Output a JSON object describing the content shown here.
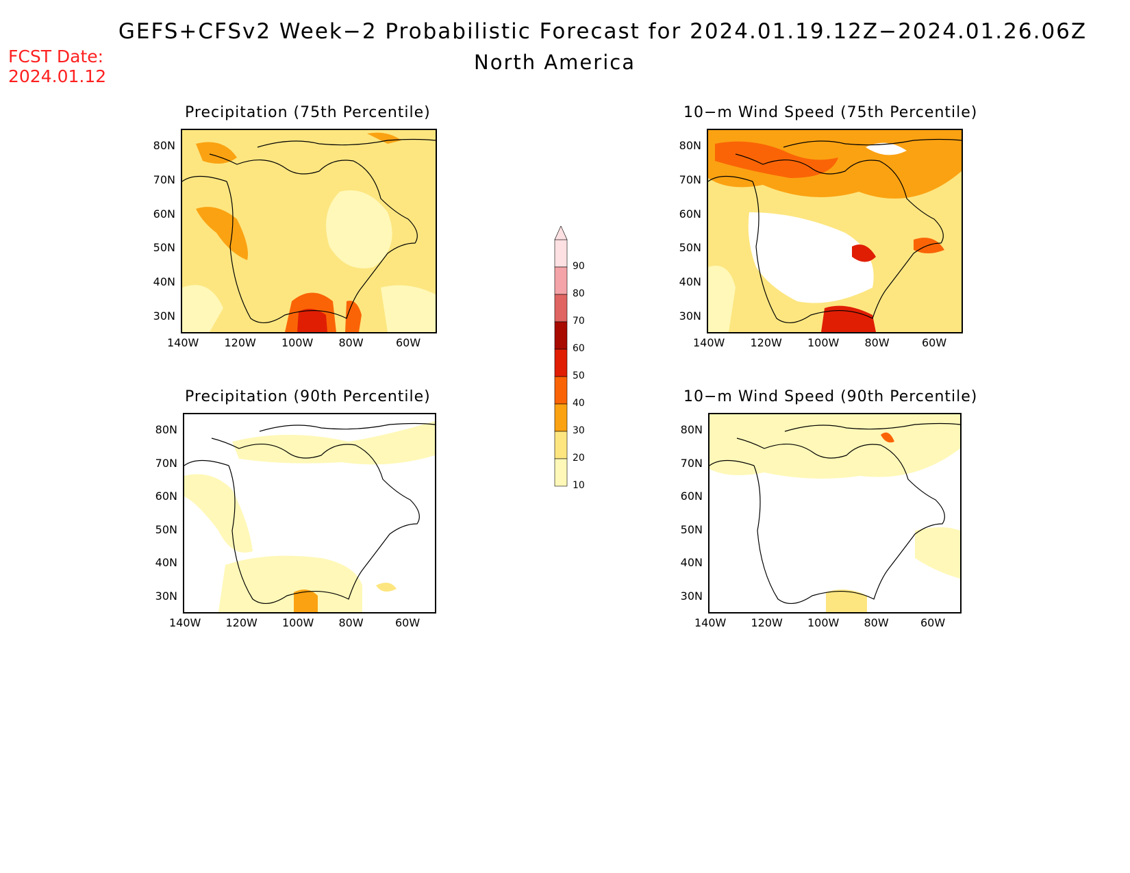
{
  "header": {
    "title": "GEFS+CFSv2 Week−2 Probabilistic Forecast for 2024.01.19.12Z−2024.01.26.06Z",
    "subtitle": "North America",
    "fcst_label": "FCST Date:",
    "fcst_date": "2024.01.12"
  },
  "panels": [
    {
      "title": "Precipitation (75th Percentile)",
      "intensity": "high"
    },
    {
      "title": "10−m Wind Speed (75th Percentile)",
      "intensity": "high"
    },
    {
      "title": "Precipitation (90th Percentile)",
      "intensity": "low"
    },
    {
      "title": "10−m Wind Speed (90th Percentile)",
      "intensity": "low"
    }
  ],
  "axes": {
    "lat_labels": [
      "80N",
      "70N",
      "60N",
      "50N",
      "40N",
      "30N"
    ],
    "lon_labels": [
      "140W",
      "120W",
      "100W",
      "80W",
      "60W"
    ]
  },
  "colorbar": {
    "levels": [
      "10",
      "20",
      "30",
      "40",
      "50",
      "60",
      "70",
      "80",
      "90"
    ],
    "colors": [
      "#fff8b8",
      "#fde680",
      "#fba212",
      "#fa6406",
      "#e01e04",
      "#a80a00",
      "#e06462",
      "#f4a4a8",
      "#fde0e2"
    ]
  }
}
